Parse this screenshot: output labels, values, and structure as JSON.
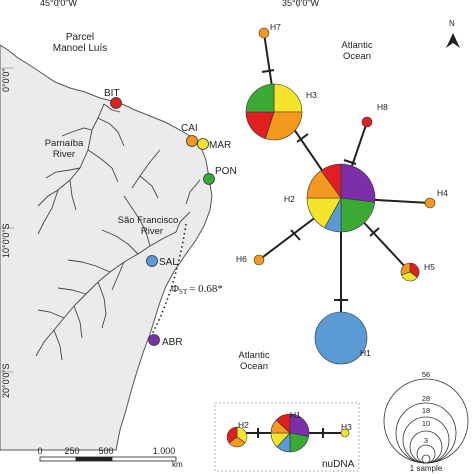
{
  "grid": {
    "lon_labels": [
      "45°0'0\"W",
      "35°0'0\"W"
    ],
    "lat_labels": [
      "0°0'0\"",
      "10°0'0\"S",
      "20°0'0\"S"
    ]
  },
  "map_labels": {
    "parcel": [
      "Parcel",
      "Manoel Luís"
    ],
    "parnaiba": [
      "Parnaíba",
      "River"
    ],
    "sao_francisco": [
      "São Francisco",
      "River"
    ],
    "ocean_top": [
      "Atlantic",
      "Ocean"
    ],
    "ocean_bottom": [
      "Atlantic",
      "Ocean"
    ]
  },
  "sites": [
    {
      "code": "BIT",
      "color": "#e02020"
    },
    {
      "code": "CAI",
      "color": "#f39a1e"
    },
    {
      "code": "MAR",
      "color": "#f5e52a"
    },
    {
      "code": "PON",
      "color": "#3aaa35"
    },
    {
      "code": "SAL",
      "color": "#5b9bd5"
    },
    {
      "code": "ABR",
      "color": "#7b2fa8"
    }
  ],
  "phi_st": {
    "symbol": "Φ",
    "sub": "ST",
    "value": "= 0.68*"
  },
  "haplotypes": [
    {
      "id": "H1",
      "n": 20,
      "slices": [
        [
          "#5b9bd5",
          1
        ]
      ]
    },
    {
      "id": "H2",
      "n": 60,
      "slices": [
        [
          "#7b2fa8",
          0.27
        ],
        [
          "#3aaa35",
          0.23
        ],
        [
          "#5b9bd5",
          0.08
        ],
        [
          "#f5e52a",
          0.17
        ],
        [
          "#f39a1e",
          0.15
        ],
        [
          "#e02020",
          0.1
        ]
      ]
    },
    {
      "id": "H3",
      "n": 25,
      "slices": [
        [
          "#f5e52a",
          0.25
        ],
        [
          "#f39a1e",
          0.3
        ],
        [
          "#e02020",
          0.2
        ],
        [
          "#3aaa35",
          0.25
        ]
      ]
    },
    {
      "id": "H4",
      "n": 1,
      "slices": [
        [
          "#f39a1e",
          1
        ]
      ]
    },
    {
      "id": "H5",
      "n": 3,
      "slices": [
        [
          "#e02020",
          0.35
        ],
        [
          "#f5e52a",
          0.35
        ],
        [
          "#f39a1e",
          0.3
        ]
      ]
    },
    {
      "id": "H6",
      "n": 1,
      "slices": [
        [
          "#f39a1e",
          1
        ]
      ]
    },
    {
      "id": "H7",
      "n": 1,
      "slices": [
        [
          "#f39a1e",
          1
        ]
      ]
    },
    {
      "id": "H8",
      "n": 1,
      "slices": [
        [
          "#e02020",
          1
        ]
      ]
    }
  ],
  "nudna": {
    "title": "nuDNA",
    "haplotypes": [
      {
        "id": "H1",
        "slices": [
          [
            "#7b2fa8",
            0.28
          ],
          [
            "#3aaa35",
            0.22
          ],
          [
            "#5b9bd5",
            0.12
          ],
          [
            "#f5e52a",
            0.13
          ],
          [
            "#f39a1e",
            0.12
          ],
          [
            "#e02020",
            0.13
          ]
        ]
      },
      {
        "id": "H2",
        "slices": [
          [
            "#f5e52a",
            0.35
          ],
          [
            "#f39a1e",
            0.3
          ],
          [
            "#e02020",
            0.35
          ]
        ]
      },
      {
        "id": "H3",
        "slices": [
          [
            "#f5e52a",
            1
          ]
        ]
      }
    ]
  },
  "size_legend": {
    "values": [
      "56",
      "28",
      "18",
      "10",
      "3"
    ],
    "label": "1 sample"
  },
  "scale_bar": {
    "ticks": [
      "0",
      "250",
      "500",
      "1.000"
    ],
    "unit": "km"
  },
  "north": "N"
}
